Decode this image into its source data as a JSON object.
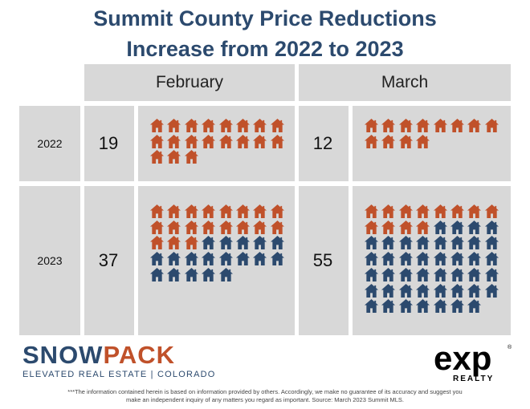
{
  "title": {
    "line1": "Summit County Price Reductions",
    "line2": "Increase from 2022 to 2023"
  },
  "chart_data": {
    "type": "pictograph",
    "categories": [
      "February",
      "March"
    ],
    "years": [
      "2022",
      "2023"
    ],
    "values": {
      "2022": {
        "February": 19,
        "March": 12
      },
      "2023": {
        "February": 37,
        "March": 55
      }
    },
    "icon": "house-icon",
    "icons_per_row": 8,
    "colors": {
      "prior_year_count": "#c0512a",
      "additional": "#2c4a6e"
    }
  },
  "labels": {
    "feb": "February",
    "mar": "March",
    "y2022": "2022",
    "y2023": "2023",
    "v2022feb": "19",
    "v2022mar": "12",
    "v2023feb": "37",
    "v2023mar": "55"
  },
  "branding": {
    "snow": "SNOW",
    "pack": "PACK",
    "tagline": "ELEVATED REAL ESTATE | COLORADO",
    "exp": "exp",
    "realty": "REALTY"
  },
  "footer": {
    "line1": "***The information contained herein is based on information provided by others. Accordingly, we make no guarantee of its accuracy and suggest you",
    "line2": "make an independent inquiry of any matters you regard as important. Source: March 2023 Summit MLS."
  }
}
